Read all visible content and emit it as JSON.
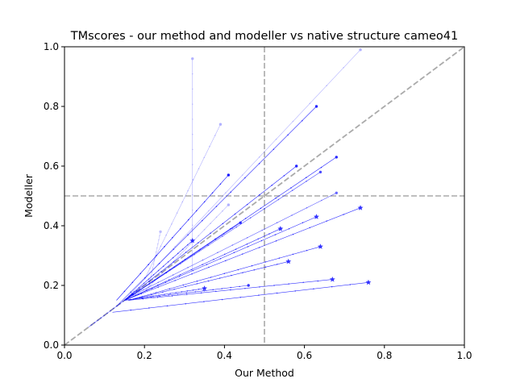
{
  "chart_data": {
    "type": "line",
    "title": "TMscores - our method and modeller vs native structure cameo41",
    "xlabel": "Our Method",
    "ylabel": "Modeller",
    "xlim": [
      0.0,
      1.0
    ],
    "ylim": [
      0.0,
      1.0
    ],
    "xticks": [
      "0.0",
      "0.2",
      "0.4",
      "0.6",
      "0.8",
      "1.0"
    ],
    "yticks": [
      "0.0",
      "0.2",
      "0.4",
      "0.6",
      "0.8",
      "1.0"
    ],
    "grid": false,
    "legend": "none",
    "reference_lines": {
      "diagonal": {
        "from": [
          0,
          0
        ],
        "to": [
          1,
          1
        ],
        "color": "#aaaaaa",
        "style": "dashed"
      },
      "vertical_x": 0.5,
      "horizontal_y": 0.5
    },
    "series_color": "#0000ff",
    "trajectories": [
      {
        "x": [
          0.13,
          0.63
        ],
        "y": [
          0.13,
          0.8
        ],
        "end": "dot",
        "alpha": 0.85
      },
      {
        "x": [
          0.15,
          0.74
        ],
        "y": [
          0.15,
          0.99
        ],
        "end": "dot",
        "alpha": 0.3
      },
      {
        "x": [
          0.13,
          0.41
        ],
        "y": [
          0.15,
          0.57
        ],
        "end": "dot",
        "alpha": 0.9
      },
      {
        "x": [
          0.32,
          0.32
        ],
        "y": [
          0.25,
          0.96
        ],
        "end": "dot",
        "alpha": 0.3
      },
      {
        "x": [
          0.2,
          0.39
        ],
        "y": [
          0.22,
          0.74
        ],
        "end": "dot",
        "alpha": 0.3
      },
      {
        "x": [
          0.15,
          0.58
        ],
        "y": [
          0.15,
          0.6
        ],
        "end": "dot",
        "alpha": 0.85
      },
      {
        "x": [
          0.15,
          0.68
        ],
        "y": [
          0.15,
          0.63
        ],
        "end": "dot",
        "alpha": 0.85
      },
      {
        "x": [
          0.15,
          0.64
        ],
        "y": [
          0.15,
          0.58
        ],
        "end": "dot",
        "alpha": 0.7
      },
      {
        "x": [
          0.16,
          0.68
        ],
        "y": [
          0.16,
          0.51
        ],
        "end": "dot",
        "alpha": 0.6
      },
      {
        "x": [
          0.15,
          0.74
        ],
        "y": [
          0.15,
          0.46
        ],
        "end": "star",
        "alpha": 0.8
      },
      {
        "x": [
          0.15,
          0.63
        ],
        "y": [
          0.15,
          0.43
        ],
        "end": "star",
        "alpha": 0.8
      },
      {
        "x": [
          0.15,
          0.44
        ],
        "y": [
          0.15,
          0.41
        ],
        "end": "dot",
        "alpha": 0.8
      },
      {
        "x": [
          0.15,
          0.54
        ],
        "y": [
          0.15,
          0.39
        ],
        "end": "star",
        "alpha": 0.8
      },
      {
        "x": [
          0.15,
          0.32
        ],
        "y": [
          0.15,
          0.35
        ],
        "end": "star",
        "alpha": 0.8
      },
      {
        "x": [
          0.16,
          0.64
        ],
        "y": [
          0.15,
          0.33
        ],
        "end": "star",
        "alpha": 0.8
      },
      {
        "x": [
          0.16,
          0.56
        ],
        "y": [
          0.15,
          0.28
        ],
        "end": "star",
        "alpha": 0.8
      },
      {
        "x": [
          0.16,
          0.67
        ],
        "y": [
          0.15,
          0.22
        ],
        "end": "star",
        "alpha": 0.8
      },
      {
        "x": [
          0.12,
          0.76
        ],
        "y": [
          0.11,
          0.21
        ],
        "end": "star",
        "alpha": 0.8
      },
      {
        "x": [
          0.15,
          0.46
        ],
        "y": [
          0.15,
          0.2
        ],
        "end": "dot",
        "alpha": 0.8
      },
      {
        "x": [
          0.15,
          0.35
        ],
        "y": [
          0.15,
          0.19
        ],
        "end": "star",
        "alpha": 0.8
      },
      {
        "x": [
          0.06,
          0.17
        ],
        "y": [
          0.06,
          0.17
        ],
        "end": "dot",
        "alpha": 0.6
      },
      {
        "x": [
          0.21,
          0.24
        ],
        "y": [
          0.19,
          0.38
        ],
        "end": "dot",
        "alpha": 0.25
      },
      {
        "x": [
          0.2,
          0.41
        ],
        "y": [
          0.18,
          0.47
        ],
        "end": "dot",
        "alpha": 0.3
      }
    ]
  }
}
